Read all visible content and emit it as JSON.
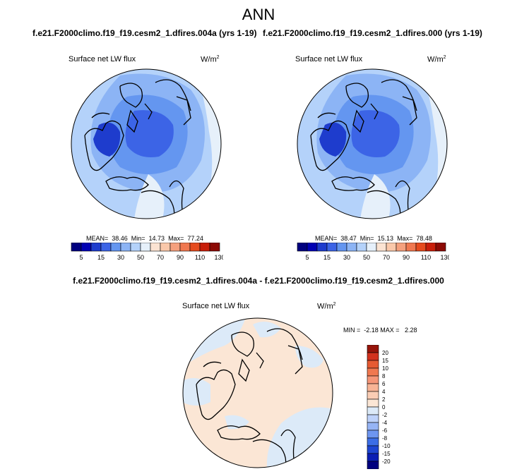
{
  "header": {
    "title": "ANN",
    "left_case": "f.e21.F2000climo.f19_f19.cesm2_1.dfires.004a (yrs 1-19)",
    "right_case": "f.e21.F2000climo.f19_f19.cesm2_1.dfires.000 (yrs 1-19)",
    "diff_case": "f.e21.F2000climo.f19_f19.cesm2_1.dfires.004a - f.e21.F2000climo.f19_f19.cesm2_1.dfires.000"
  },
  "colors": {
    "abs_levels": [
      "#00007f",
      "#0000b3",
      "#1e3ccd",
      "#3c64e6",
      "#6496f0",
      "#8cb4f5",
      "#b4d2fa",
      "#e6f0fa",
      "#fbe3d2",
      "#fac8aa",
      "#f5a07d",
      "#f07850",
      "#e64b1e",
      "#c81e0a",
      "#8c0a05"
    ],
    "diff_levels": [
      "#00007f",
      "#0a1eb4",
      "#1e46d2",
      "#3c6ee6",
      "#6e96f0",
      "#96b4f5",
      "#bed2fa",
      "#dceaf8",
      "#fbe6d5",
      "#facdb4",
      "#f8b496",
      "#f59678",
      "#f07850",
      "#e65a32",
      "#d2321e",
      "#96140a"
    ]
  },
  "panels": {
    "left": {
      "variable": "Surface net LW flux",
      "units": "W/m",
      "units_exp": "2",
      "stats_line": "MEAN=  38.46  Min=  14.73  Max=  77.24"
    },
    "right": {
      "variable": "Surface net LW flux",
      "units": "W/m",
      "units_exp": "2",
      "stats_line": "MEAN=  38.47  Min=  15.13  Max=  78.48"
    },
    "diff": {
      "variable": "Surface net LW flux",
      "units": "W/m",
      "units_exp": "2",
      "stats_line": "MIN =  -2.18 MAX =   2.28"
    }
  },
  "chart_data": [
    {
      "type": "heatmap",
      "projection": "north-polar-stereographic",
      "title": "Surface net LW flux",
      "units": "W/m2",
      "colorbar_ticks": [
        "5",
        "15",
        "30",
        "50",
        "70",
        "90",
        "110",
        "130"
      ],
      "mean": 38.46,
      "min": 14.73,
      "max": 77.24
    },
    {
      "type": "heatmap",
      "projection": "north-polar-stereographic",
      "title": "Surface net LW flux",
      "units": "W/m2",
      "colorbar_ticks": [
        "5",
        "15",
        "30",
        "50",
        "70",
        "90",
        "110",
        "130"
      ],
      "mean": 38.47,
      "min": 15.13,
      "max": 78.48
    },
    {
      "type": "heatmap",
      "projection": "north-polar-stereographic",
      "title": "Surface net LW flux",
      "units": "W/m2",
      "colorbar_ticks": [
        "20",
        "15",
        "10",
        "8",
        "6",
        "4",
        "2",
        "0",
        "-2",
        "-4",
        "-6",
        "-8",
        "-10",
        "-15",
        "-20"
      ],
      "min": -2.18,
      "max": 2.28
    }
  ]
}
